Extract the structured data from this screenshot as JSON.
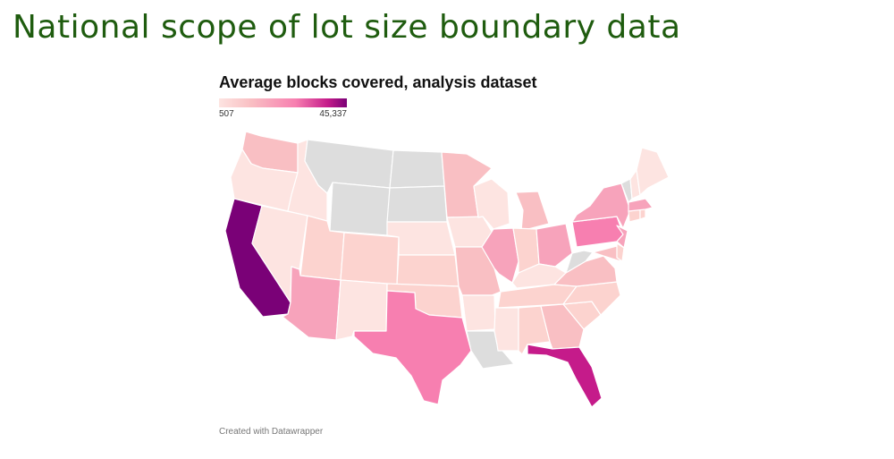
{
  "slide": {
    "title": "National scope of lot size boundary data"
  },
  "map": {
    "title": "Average blocks covered, analysis dataset",
    "legend": {
      "min_label": "507",
      "max_label": "45,337"
    },
    "credit": "Created with Datawrapper",
    "colors": {
      "no_data": "#dddddd",
      "lowest": "#fde4e1",
      "low": "#fcd3cf",
      "low_mid": "#f9bfc3",
      "mid": "#f7a3bb",
      "mid_high": "#f77fb0",
      "high": "#c51b8a",
      "highest": "#7a0177"
    },
    "states": [
      {
        "name": "Washington",
        "shade": "low_mid"
      },
      {
        "name": "Oregon",
        "shade": "lowest"
      },
      {
        "name": "California",
        "shade": "highest"
      },
      {
        "name": "Idaho",
        "shade": "lowest"
      },
      {
        "name": "Nevada",
        "shade": "lowest"
      },
      {
        "name": "Montana",
        "shade": "no_data"
      },
      {
        "name": "Wyoming",
        "shade": "no_data"
      },
      {
        "name": "Utah",
        "shade": "low"
      },
      {
        "name": "Arizona",
        "shade": "mid"
      },
      {
        "name": "Colorado",
        "shade": "low"
      },
      {
        "name": "New Mexico",
        "shade": "lowest"
      },
      {
        "name": "North Dakota",
        "shade": "no_data"
      },
      {
        "name": "South Dakota",
        "shade": "no_data"
      },
      {
        "name": "Nebraska",
        "shade": "lowest"
      },
      {
        "name": "Kansas",
        "shade": "low"
      },
      {
        "name": "Oklahoma",
        "shade": "low"
      },
      {
        "name": "Texas",
        "shade": "mid_high"
      },
      {
        "name": "Minnesota",
        "shade": "low_mid"
      },
      {
        "name": "Iowa",
        "shade": "lowest"
      },
      {
        "name": "Missouri",
        "shade": "low_mid"
      },
      {
        "name": "Arkansas",
        "shade": "lowest"
      },
      {
        "name": "Louisiana",
        "shade": "no_data"
      },
      {
        "name": "Wisconsin",
        "shade": "lowest"
      },
      {
        "name": "Illinois",
        "shade": "mid"
      },
      {
        "name": "Michigan",
        "shade": "low_mid"
      },
      {
        "name": "Indiana",
        "shade": "low"
      },
      {
        "name": "Ohio",
        "shade": "mid"
      },
      {
        "name": "Kentucky",
        "shade": "lowest"
      },
      {
        "name": "Tennessee",
        "shade": "low"
      },
      {
        "name": "Mississippi",
        "shade": "lowest"
      },
      {
        "name": "Alabama",
        "shade": "low"
      },
      {
        "name": "Georgia",
        "shade": "low_mid"
      },
      {
        "name": "Florida",
        "shade": "high"
      },
      {
        "name": "South Carolina",
        "shade": "low"
      },
      {
        "name": "North Carolina",
        "shade": "low"
      },
      {
        "name": "Virginia",
        "shade": "low_mid"
      },
      {
        "name": "West Virginia",
        "shade": "no_data"
      },
      {
        "name": "Pennsylvania",
        "shade": "mid_high"
      },
      {
        "name": "New York",
        "shade": "mid"
      },
      {
        "name": "New Jersey",
        "shade": "mid"
      },
      {
        "name": "Maryland",
        "shade": "low_mid"
      },
      {
        "name": "Delaware",
        "shade": "low"
      },
      {
        "name": "Connecticut",
        "shade": "low"
      },
      {
        "name": "Rhode Island",
        "shade": "low"
      },
      {
        "name": "Massachusetts",
        "shade": "mid"
      },
      {
        "name": "Vermont",
        "shade": "no_data"
      },
      {
        "name": "New Hampshire",
        "shade": "lowest"
      },
      {
        "name": "Maine",
        "shade": "lowest"
      }
    ]
  }
}
